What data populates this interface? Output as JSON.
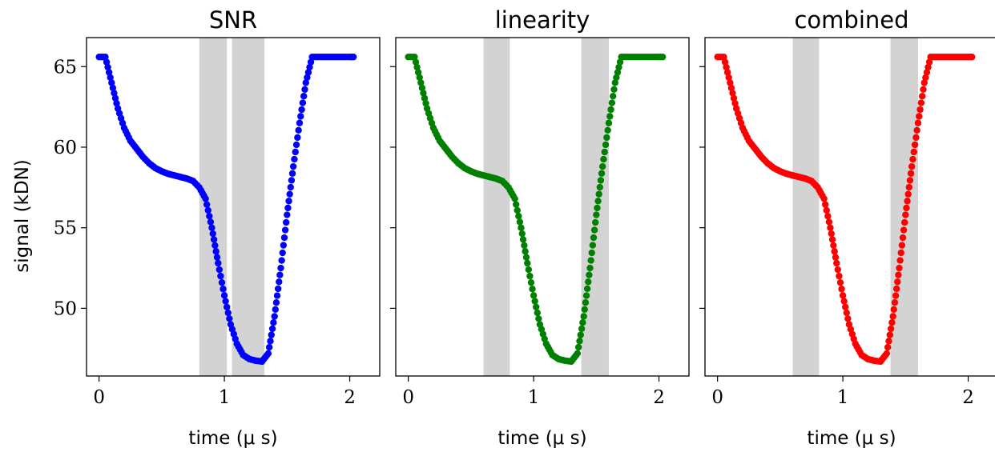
{
  "chart_data": [
    {
      "type": "scatter",
      "title": "SNR",
      "xlabel": "time ($\\mu$ s)",
      "ylabel": "signal (kDN)",
      "xlim": [
        -0.1,
        2.15
      ],
      "ylim": [
        45.8,
        66.8
      ],
      "xticks": [
        "0",
        "1",
        "2"
      ],
      "yticks": [
        "50",
        "55",
        "60",
        "65"
      ],
      "color": "#0000ff",
      "shaded_regions": [
        [
          0.8,
          1.02
        ],
        [
          1.06,
          1.32
        ]
      ],
      "x": [
        0.0,
        0.05,
        0.1,
        0.15,
        0.2,
        0.25,
        0.3,
        0.35,
        0.4,
        0.45,
        0.5,
        0.55,
        0.6,
        0.65,
        0.7,
        0.75,
        0.8,
        0.85,
        0.9,
        0.95,
        1.0,
        1.05,
        1.1,
        1.15,
        1.2,
        1.25,
        1.3,
        1.35,
        1.4,
        1.45,
        1.5,
        1.55,
        1.6,
        1.65,
        1.7,
        1.75,
        1.8,
        1.85,
        1.9,
        1.95,
        2.0,
        2.03
      ],
      "y": [
        65.6,
        65.6,
        64.0,
        62.4,
        61.2,
        60.4,
        59.9,
        59.4,
        59.0,
        58.7,
        58.5,
        58.35,
        58.25,
        58.15,
        58.05,
        57.9,
        57.5,
        56.8,
        55.0,
        52.8,
        50.8,
        49.0,
        47.8,
        47.1,
        46.85,
        46.75,
        46.7,
        47.2,
        49.5,
        52.5,
        55.8,
        58.8,
        61.5,
        64.0,
        65.6,
        65.6,
        65.6,
        65.6,
        65.6,
        65.6,
        65.6,
        65.6
      ]
    },
    {
      "type": "scatter",
      "title": "linearity",
      "xlabel": "time ($\\mu$ s)",
      "ylabel": "",
      "xlim": [
        -0.1,
        2.15
      ],
      "ylim": [
        45.8,
        66.8
      ],
      "xticks": [
        "0",
        "1",
        "2"
      ],
      "yticks": [],
      "color": "#008000",
      "shaded_regions": [
        [
          0.6,
          0.81
        ],
        [
          1.38,
          1.6
        ]
      ],
      "x": [
        0.0,
        0.05,
        0.1,
        0.15,
        0.2,
        0.25,
        0.3,
        0.35,
        0.4,
        0.45,
        0.5,
        0.55,
        0.6,
        0.65,
        0.7,
        0.75,
        0.8,
        0.85,
        0.9,
        0.95,
        1.0,
        1.05,
        1.1,
        1.15,
        1.2,
        1.25,
        1.3,
        1.35,
        1.4,
        1.45,
        1.5,
        1.55,
        1.6,
        1.65,
        1.7,
        1.75,
        1.8,
        1.85,
        1.9,
        1.95,
        2.0,
        2.03
      ],
      "y": [
        65.6,
        65.6,
        64.0,
        62.4,
        61.2,
        60.4,
        59.9,
        59.4,
        59.0,
        58.7,
        58.5,
        58.35,
        58.25,
        58.15,
        58.05,
        57.9,
        57.5,
        56.8,
        55.0,
        52.8,
        50.8,
        49.0,
        47.8,
        47.1,
        46.85,
        46.75,
        46.7,
        47.2,
        49.5,
        52.5,
        55.8,
        58.8,
        61.5,
        64.0,
        65.6,
        65.6,
        65.6,
        65.6,
        65.6,
        65.6,
        65.6,
        65.6
      ]
    },
    {
      "type": "scatter",
      "title": "combined",
      "xlabel": "time ($\\mu$ s)",
      "ylabel": "",
      "xlim": [
        -0.1,
        2.15
      ],
      "ylim": [
        45.8,
        66.8
      ],
      "xticks": [
        "0",
        "1",
        "2"
      ],
      "yticks": [],
      "color": "#ff0000",
      "shaded_regions": [
        [
          0.6,
          0.81
        ],
        [
          1.38,
          1.6
        ]
      ],
      "x": [
        0.0,
        0.05,
        0.1,
        0.15,
        0.2,
        0.25,
        0.3,
        0.35,
        0.4,
        0.45,
        0.5,
        0.55,
        0.6,
        0.65,
        0.7,
        0.75,
        0.8,
        0.85,
        0.9,
        0.95,
        1.0,
        1.05,
        1.1,
        1.15,
        1.2,
        1.25,
        1.3,
        1.35,
        1.4,
        1.45,
        1.5,
        1.55,
        1.6,
        1.65,
        1.7,
        1.75,
        1.8,
        1.85,
        1.9,
        1.95,
        2.0,
        2.03
      ],
      "y": [
        65.6,
        65.6,
        64.0,
        62.4,
        61.2,
        60.4,
        59.9,
        59.4,
        59.0,
        58.7,
        58.5,
        58.35,
        58.25,
        58.15,
        58.05,
        57.9,
        57.5,
        56.8,
        55.0,
        52.8,
        50.8,
        49.0,
        47.8,
        47.1,
        46.85,
        46.75,
        46.7,
        47.2,
        49.5,
        52.5,
        55.8,
        58.8,
        61.5,
        64.0,
        65.6,
        65.6,
        65.6,
        65.6,
        65.6,
        65.6,
        65.6,
        65.6
      ]
    }
  ]
}
